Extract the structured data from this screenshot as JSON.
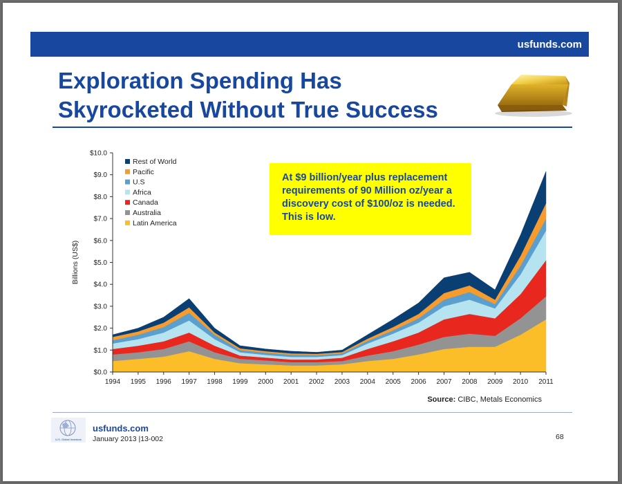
{
  "header": {
    "site": "usfunds.com"
  },
  "title_line1": "Exploration Spending Has",
  "title_line2": "Skyrocketed Without True Success",
  "callout": "At $9 billion/year plus replacement requirements of 90 Million oz/year a discovery cost of $100/oz is needed. This is low.",
  "source": {
    "label": "Source:",
    "text": "CIBC,  Metals Economics"
  },
  "footer": {
    "site": "usfunds.com",
    "date": "January 2013 |13-002",
    "page": "68",
    "logo_text": "U.S. Global Investors"
  },
  "colors": {
    "brand_blue": "#17479e",
    "callout_bg": "#ffff00",
    "latin_america": "#fbbd28",
    "australia": "#939393",
    "canada": "#e8281f",
    "africa": "#b5e4f0",
    "us": "#5a9fce",
    "pacific": "#f79b2d",
    "rest_of_world": "#0a3f74"
  },
  "chart_data": {
    "type": "area",
    "stacked": true,
    "x": [
      "1994",
      "1995",
      "1996",
      "1997",
      "1998",
      "1999",
      "2000",
      "2001",
      "2002",
      "2003",
      "2004",
      "2005",
      "2006",
      "2007",
      "2008",
      "2009",
      "2010",
      "2011"
    ],
    "ylabel": "Billions (US$)",
    "xlabel": "",
    "ylim": [
      0,
      10
    ],
    "yticks": [
      "$0.0",
      "$1.0",
      "$2.0",
      "$3.0",
      "$4.0",
      "$5.0",
      "$6.0",
      "$7.0",
      "$8.0",
      "$9.0",
      "$10.0"
    ],
    "legend_position": "top-left",
    "legend_order": [
      "Rest of World",
      "Pacific",
      "U.S",
      "Africa",
      "Canada",
      "Australia",
      "Latin America"
    ],
    "series": [
      {
        "name": "Latin America",
        "color": "#fbbd28",
        "values": [
          0.5,
          0.6,
          0.7,
          0.95,
          0.6,
          0.4,
          0.35,
          0.3,
          0.3,
          0.35,
          0.5,
          0.6,
          0.8,
          1.05,
          1.15,
          1.15,
          1.7,
          2.4
        ]
      },
      {
        "name": "Australia",
        "color": "#939393",
        "values": [
          0.3,
          0.3,
          0.35,
          0.45,
          0.3,
          0.2,
          0.18,
          0.15,
          0.15,
          0.15,
          0.25,
          0.35,
          0.45,
          0.55,
          0.6,
          0.5,
          0.75,
          1.05
        ]
      },
      {
        "name": "Canada",
        "color": "#e8281f",
        "values": [
          0.25,
          0.3,
          0.35,
          0.4,
          0.3,
          0.15,
          0.13,
          0.12,
          0.12,
          0.15,
          0.3,
          0.45,
          0.55,
          0.8,
          0.9,
          0.8,
          1.1,
          1.65
        ]
      },
      {
        "name": "Africa",
        "color": "#b5e4f0",
        "values": [
          0.25,
          0.3,
          0.4,
          0.55,
          0.3,
          0.15,
          0.12,
          0.12,
          0.12,
          0.12,
          0.25,
          0.35,
          0.45,
          0.6,
          0.65,
          0.45,
          0.9,
          1.35
        ]
      },
      {
        "name": "U.S",
        "color": "#5a9fce",
        "values": [
          0.15,
          0.2,
          0.25,
          0.35,
          0.2,
          0.1,
          0.1,
          0.1,
          0.08,
          0.08,
          0.12,
          0.15,
          0.2,
          0.3,
          0.35,
          0.2,
          0.4,
          0.55
        ]
      },
      {
        "name": "Pacific",
        "color": "#f79b2d",
        "values": [
          0.15,
          0.15,
          0.2,
          0.25,
          0.1,
          0.08,
          0.07,
          0.06,
          0.06,
          0.06,
          0.1,
          0.15,
          0.2,
          0.3,
          0.3,
          0.2,
          0.45,
          0.7
        ]
      },
      {
        "name": "Rest of World",
        "color": "#0a3f74",
        "values": [
          0.1,
          0.15,
          0.25,
          0.4,
          0.2,
          0.12,
          0.1,
          0.1,
          0.07,
          0.09,
          0.18,
          0.35,
          0.5,
          0.7,
          0.6,
          0.45,
          0.95,
          1.45
        ]
      }
    ]
  }
}
